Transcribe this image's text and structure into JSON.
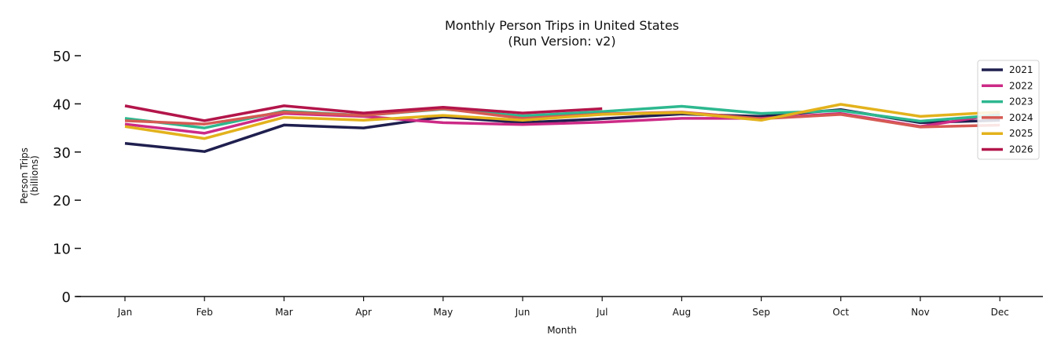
{
  "chart_data": {
    "type": "line",
    "title": "Monthly Person Trips in United States",
    "subtitle": "(Run Version: v2)",
    "xlabel": "Month",
    "ylabel_line1": "Person Trips",
    "ylabel_line2": "(billions)",
    "ylim": [
      0,
      50
    ],
    "yticks": [
      "0",
      "10",
      "20",
      "30",
      "40",
      "50"
    ],
    "categories": [
      "Jan",
      "Feb",
      "Mar",
      "Apr",
      "May",
      "Jun",
      "Jul",
      "Aug",
      "Sep",
      "Oct",
      "Nov",
      "Dec"
    ],
    "grid": false,
    "legend_position": "top-right",
    "series": [
      {
        "name": "2021",
        "color": "#1f1f4f",
        "values": [
          31.8,
          30.1,
          35.6,
          35.0,
          37.3,
          36.1,
          36.9,
          37.9,
          37.4,
          38.8,
          36.1,
          36.6
        ]
      },
      {
        "name": "2022",
        "color": "#cc2a86",
        "values": [
          35.8,
          33.9,
          38.0,
          37.4,
          36.1,
          35.7,
          36.2,
          37.0,
          37.0,
          38.0,
          35.3,
          37.9
        ]
      },
      {
        "name": "2023",
        "color": "#2db88f",
        "values": [
          37.0,
          35.0,
          38.5,
          37.6,
          38.9,
          37.5,
          38.4,
          39.5,
          38.0,
          38.6,
          36.4,
          37.7
        ]
      },
      {
        "name": "2024",
        "color": "#d65a53",
        "values": [
          36.5,
          35.8,
          38.3,
          37.6,
          39.0,
          37.0,
          37.9,
          38.3,
          36.9,
          37.8,
          35.2,
          35.6
        ]
      },
      {
        "name": "2025",
        "color": "#e3b21c",
        "values": [
          35.3,
          32.8,
          37.2,
          36.6,
          37.6,
          36.6,
          37.8,
          38.2,
          36.6,
          39.9,
          37.4,
          38.3
        ]
      },
      {
        "name": "2026",
        "color": "#b3154a",
        "values": [
          39.6,
          36.5,
          39.6,
          38.1,
          39.3,
          38.1,
          39.0,
          null,
          null,
          null,
          null,
          null
        ]
      }
    ]
  }
}
